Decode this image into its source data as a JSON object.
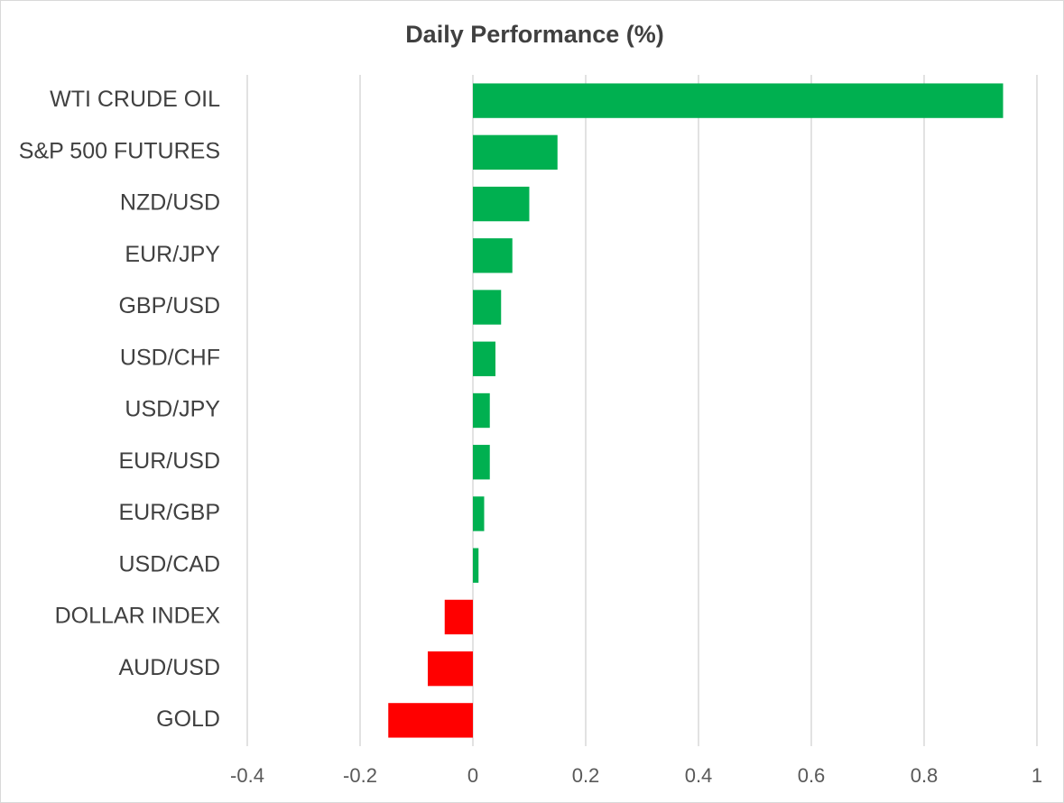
{
  "chart_data": {
    "type": "bar",
    "orientation": "horizontal",
    "title": "Daily Performance (%)",
    "xlabel": "",
    "ylabel": "",
    "categories": [
      "WTI CRUDE OIL",
      "S&P 500 FUTURES",
      "NZD/USD",
      "EUR/JPY",
      "GBP/USD",
      "USD/CHF",
      "USD/JPY",
      "EUR/USD",
      "EUR/GBP",
      "USD/CAD",
      "DOLLAR INDEX",
      "AUD/USD",
      "GOLD"
    ],
    "values": [
      0.94,
      0.15,
      0.1,
      0.07,
      0.05,
      0.04,
      0.03,
      0.03,
      0.02,
      0.01,
      -0.05,
      -0.08,
      -0.15
    ],
    "xlim": [
      -0.4,
      1
    ],
    "xticks": [
      "-0.4",
      "-0.2",
      "0",
      "0.2",
      "0.4",
      "0.6",
      "0.8",
      "1"
    ],
    "xtick_values": [
      -0.4,
      -0.2,
      0,
      0.2,
      0.4,
      0.6,
      0.8,
      1
    ],
    "grid": true,
    "legend": "none",
    "colors": {
      "positive": "#00b050",
      "negative": "#ff0000",
      "gridline": "#d9d9d9",
      "text": "#404040"
    }
  }
}
